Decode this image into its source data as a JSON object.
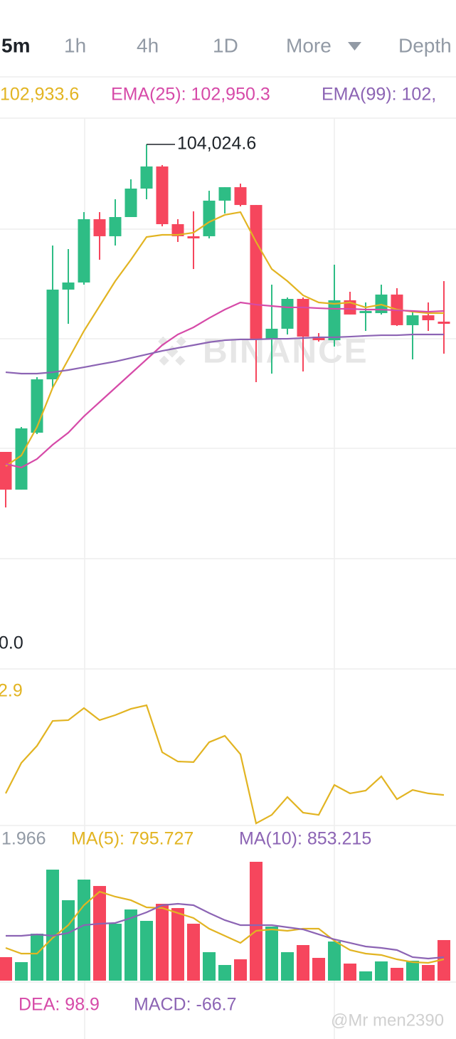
{
  "tabs": [
    "5m",
    "1h",
    "4h",
    "1D",
    "More",
    "Depth"
  ],
  "chart_data": [
    {
      "type": "candlestick",
      "annotation": "104,024.6",
      "ylim": [
        101347,
        104309.4
      ],
      "up_color": "#2ebd85",
      "down_color": "#f6465d",
      "open": [
        102037,
        101793,
        102161,
        102506,
        103086,
        103132,
        103541,
        103431,
        103555,
        103739,
        103882,
        103509,
        103431,
        103431,
        103661,
        103748,
        103633,
        102764,
        102833,
        103026,
        102782,
        102759,
        103017,
        102934,
        102934,
        103054,
        102856,
        102920,
        102879
      ],
      "high": [
        102037,
        102198,
        102520,
        103371,
        103348,
        103587,
        103587,
        103670,
        103799,
        104024.6,
        103891,
        103541,
        103592,
        103725,
        103748,
        103771,
        103633,
        103118,
        103035,
        103035,
        102805,
        103247,
        103072,
        103003,
        103118,
        103095,
        102943,
        103003,
        103141
      ],
      "low": [
        101678,
        101793,
        102152,
        102451,
        102865,
        103118,
        103279,
        103371,
        103555,
        103670,
        103495,
        103394,
        103219,
        103417,
        103578,
        103624,
        102488,
        102543,
        102796,
        102557,
        102750,
        102718,
        102925,
        102819,
        102925,
        102851,
        102635,
        102819,
        102672
      ],
      "close": [
        101793,
        102189,
        102506,
        103086,
        103132,
        103541,
        103431,
        103555,
        103739,
        103882,
        103509,
        103431,
        103417,
        103661,
        103748,
        103633,
        102764,
        102833,
        103026,
        102782,
        102759,
        103017,
        102925,
        102948,
        103054,
        102856,
        102920,
        102888,
        102865
      ],
      "series": [
        {
          "name": "102,933.6",
          "color": "#e2b422",
          "values": [
            101945,
            102014,
            102198,
            102451,
            102635,
            102819,
            102980,
            103141,
            103279,
            103426,
            103440,
            103440,
            103454,
            103523,
            103569,
            103587,
            103394,
            103219,
            103141,
            103049,
            103003,
            102994,
            103003,
            102971,
            102989,
            102957,
            102943,
            102934,
            102934
          ]
        },
        {
          "name": "EMA(25): 102,950.3",
          "color": "#d64aa8",
          "values": [
            101959,
            101936,
            101991,
            102083,
            102161,
            102267,
            102359,
            102451,
            102543,
            102635,
            102727,
            102796,
            102842,
            102902,
            102957,
            103003,
            102989,
            102980,
            102971,
            102971,
            102966,
            102962,
            102962,
            102957,
            102957,
            102952,
            102948,
            102943,
            102948
          ]
        },
        {
          "name": "EMA(99): 102,",
          "color": "#8c64b4",
          "values": [
            102552,
            102543,
            102543,
            102552,
            102566,
            102584,
            102603,
            102621,
            102644,
            102667,
            102690,
            102709,
            102727,
            102746,
            102759,
            102764,
            102764,
            102768,
            102768,
            102773,
            102778,
            102778,
            102782,
            102787,
            102791,
            102791,
            102796,
            102796,
            102796
          ]
        }
      ]
    },
    {
      "type": "line",
      "label": "0.0",
      "ylim": [
        0,
        100
      ],
      "series": [
        {
          "name": "2.9",
          "color": "#e2b422",
          "values": [
            20.5,
            40,
            50.9,
            66.8,
            67.3,
            75,
            67.3,
            70.5,
            74.5,
            76.8,
            46.8,
            40.9,
            40.5,
            53.2,
            57.3,
            45.5,
            1.4,
            6.8,
            18.2,
            8.2,
            6.8,
            25.9,
            20.5,
            22.3,
            31.4,
            16.8,
            22.7,
            20.5,
            19.5
          ]
        }
      ]
    },
    {
      "type": "bar",
      "ylim": [
        0,
        5032.5
      ],
      "series": [
        {
          "name": "1.966",
          "color": "#929aa5",
          "values": [
            908,
            715,
            1815,
            4290,
            3108,
            3905,
            3658,
            2200,
            2750,
            2310,
            2970,
            2805,
            2200,
            1100,
            605,
            825,
            4593,
            2090,
            1100,
            1375,
            880,
            1513,
            660,
            358,
            743,
            495,
            770,
            605,
            1568
          ]
        },
        {
          "name": "MA(5): 795.727",
          "color": "#e2b422",
          "values": [
            1265,
            1045,
            1045,
            1650,
            2145,
            2915,
            3438,
            3245,
            3108,
            2833,
            2805,
            2613,
            2420,
            2008,
            1733,
            1458,
            1925,
            1980,
            1925,
            2008,
            2008,
            1540,
            1183,
            1045,
            990,
            825,
            715,
            688,
            825
          ]
        },
        {
          "name": "MA(10): 853.215",
          "color": "#8c64b4",
          "values": [
            1733,
            1733,
            1788,
            1733,
            1843,
            2145,
            2200,
            2228,
            2420,
            2640,
            2915,
            2970,
            2915,
            2613,
            2338,
            2145,
            2145,
            2145,
            2063,
            1980,
            1788,
            1595,
            1458,
            1320,
            1265,
            1183,
            908,
            853,
            908
          ]
        }
      ]
    }
  ],
  "macd_legend": [
    {
      "text": "DEA: 98.9",
      "color": "#d64aa8"
    },
    {
      "text": "MACD: -66.7",
      "color": "#8c64b4"
    }
  ],
  "watermarks": [
    "BINANCE",
    "@Mr men2390"
  ]
}
